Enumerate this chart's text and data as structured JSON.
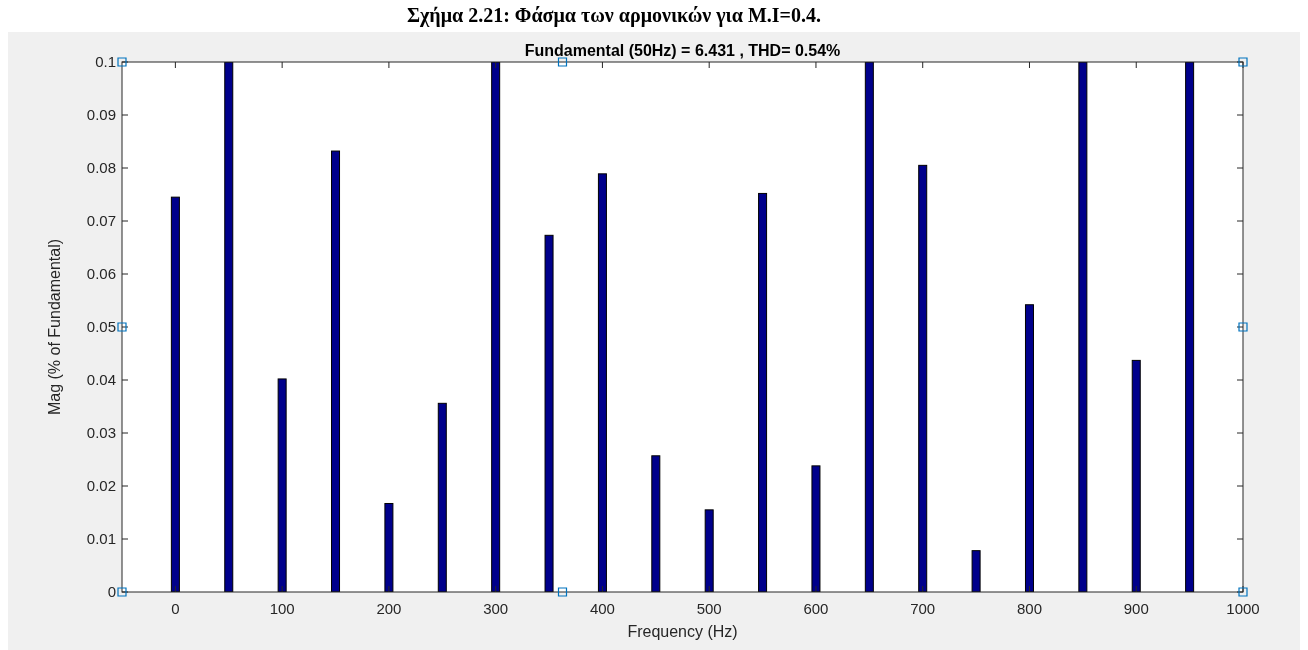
{
  "chart_data": {
    "type": "bar",
    "title": "Fundamental (50Hz) = 6.431 , THD= 0.54%",
    "xlabel": "Frequency (Hz)",
    "ylabel": "Mag (% of Fundamental)",
    "annotations": [
      "Σχήμα 2.21: Φάσμα των αρμονικών για M.I=0.4."
    ],
    "x": [
      0,
      50,
      100,
      150,
      200,
      250,
      300,
      350,
      400,
      450,
      500,
      550,
      600,
      650,
      700,
      750,
      800,
      850,
      900,
      950
    ],
    "values": [
      0.0745,
      0.1,
      0.0402,
      0.0832,
      0.0167,
      0.0356,
      0.1,
      0.0673,
      0.0789,
      0.0257,
      0.0155,
      0.0752,
      0.0238,
      0.1,
      0.0805,
      0.0078,
      0.0542,
      0.1,
      0.0437,
      0.1
    ],
    "color": "#00008b",
    "xlim": [
      -50,
      1000
    ],
    "xticks": [
      0,
      100,
      200,
      300,
      400,
      500,
      600,
      700,
      800,
      900,
      1000
    ],
    "ylim": [
      0,
      0.1
    ],
    "yticks": [
      0,
      0.01,
      0.02,
      0.03,
      0.04,
      0.05,
      0.06,
      0.07,
      0.08,
      0.09,
      0.1
    ],
    "grid": false
  }
}
